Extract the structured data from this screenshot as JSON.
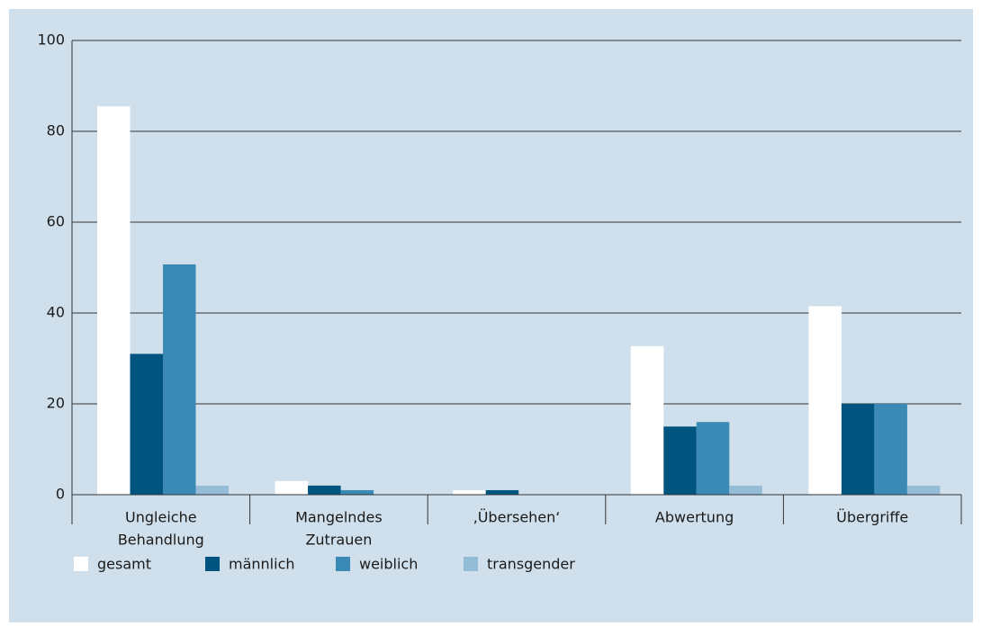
{
  "chart_data": {
    "type": "bar",
    "categories": [
      [
        "Ungleiche",
        "Behandlung"
      ],
      [
        "Mangelndes",
        "Zutrauen"
      ],
      [
        "‚Übersehen‘"
      ],
      [
        "Abwertung"
      ],
      [
        "Übergriffe"
      ]
    ],
    "series": [
      {
        "name": "gesamt",
        "color": "#ffffff",
        "values": [
          85.5,
          3,
          1,
          32.7,
          41.5
        ]
      },
      {
        "name": "männlich",
        "color": "#005580",
        "values": [
          31,
          2,
          1,
          15,
          20
        ]
      },
      {
        "name": "weiblich",
        "color": "#3a8ab5",
        "values": [
          50.7,
          1,
          0,
          16,
          20
        ]
      },
      {
        "name": "transgender",
        "color": "#94bcd6",
        "values": [
          2,
          0,
          0,
          2,
          2
        ]
      }
    ],
    "ylim": [
      0,
      100
    ],
    "yticks": [
      0,
      20,
      40,
      60,
      80,
      100
    ],
    "grid": true,
    "legend": "bottom"
  }
}
